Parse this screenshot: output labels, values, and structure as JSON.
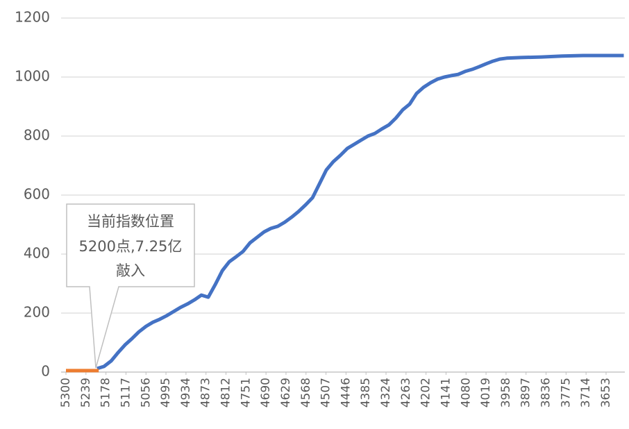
{
  "chart_data": {
    "type": "line",
    "annotation": [
      "当前指数位置",
      "5200点,7.25亿",
      "敲入"
    ],
    "xlim": [
      5300,
      3600
    ],
    "xticks": [
      5300,
      5239,
      5178,
      5117,
      5056,
      4995,
      4934,
      4873,
      4812,
      4751,
      4690,
      4629,
      4568,
      4507,
      4446,
      4385,
      4324,
      4263,
      4202,
      4141,
      4080,
      4019,
      3958,
      3897,
      3836,
      3775,
      3714,
      3653
    ],
    "ylim": [
      0,
      1200
    ],
    "yticks": [
      0,
      200,
      400,
      600,
      800,
      1000,
      1200
    ],
    "grid": true,
    "series": [
      {
        "color": "#4472c4",
        "x": [
          5205,
          5184,
          5162,
          5141,
          5120,
          5099,
          5078,
          5056,
          5035,
          5014,
          4993,
          4972,
          4951,
          4929,
          4908,
          4887,
          4866,
          4845,
          4823,
          4802,
          4781,
          4760,
          4739,
          4718,
          4696,
          4675,
          4654,
          4633,
          4612,
          4591,
          4569,
          4548,
          4527,
          4506,
          4485,
          4464,
          4442,
          4421,
          4400,
          4379,
          4358,
          4337,
          4315,
          4294,
          4273,
          4252,
          4231,
          4210,
          4188,
          4167,
          4146,
          4125,
          4104,
          4083,
          4061,
          4040,
          4019,
          3998,
          3977,
          3956,
          3913,
          3850,
          3787,
          3723,
          3660,
          3599
        ],
        "values": [
          12,
          19,
          38,
          66,
          92,
          113,
          136,
          155,
          169,
          179,
          191,
          205,
          219,
          231,
          245,
          261,
          254,
          296,
          344,
          374,
          391,
          409,
          438,
          456,
          475,
          487,
          494,
          508,
          525,
          544,
          567,
          591,
          638,
          685,
          713,
          734,
          758,
          772,
          786,
          800,
          809,
          824,
          838,
          861,
          889,
          908,
          944,
          965,
          981,
          993,
          1000,
          1005,
          1009,
          1019,
          1026,
          1035,
          1045,
          1054,
          1061,
          1064,
          1066,
          1068,
          1071,
          1073,
          1073,
          1073
        ]
      },
      {
        "color": "#ed7d31",
        "x": [
          5300,
          5200
        ],
        "values": [
          5,
          5
        ]
      }
    ]
  }
}
